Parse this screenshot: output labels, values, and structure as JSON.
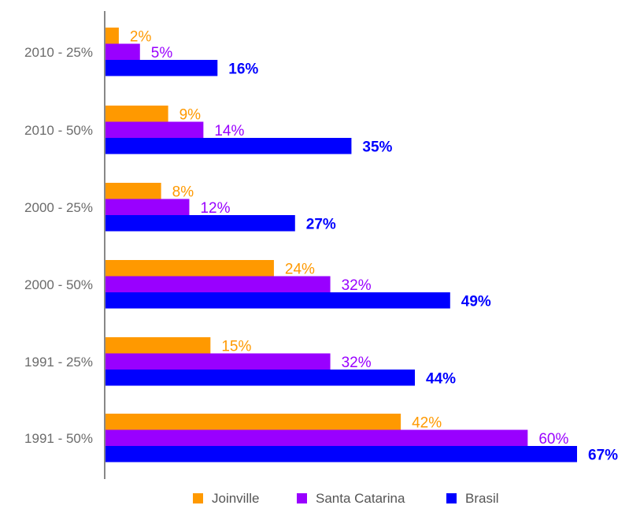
{
  "chart_data": {
    "type": "bar",
    "orientation": "horizontal",
    "categories": [
      "2010 - 25%",
      "2010 - 50%",
      "2000 - 25%",
      "2000 - 50%",
      "1991 - 25%",
      "1991 - 50%"
    ],
    "series": [
      {
        "name": "Joinville",
        "color": "#ff9900",
        "values": [
          2,
          9,
          8,
          24,
          15,
          42
        ],
        "labels": [
          "2%",
          "9%",
          "8%",
          "24%",
          "15%",
          "42%"
        ]
      },
      {
        "name": "Santa Catarina",
        "color": "#9900ff",
        "values": [
          5,
          14,
          12,
          32,
          32,
          60
        ],
        "labels": [
          "5%",
          "14%",
          "12%",
          "32%",
          "32%",
          "60%"
        ]
      },
      {
        "name": "Brasil",
        "color": "#0000ff",
        "values": [
          16,
          35,
          27,
          49,
          44,
          67
        ],
        "labels": [
          "16%",
          "35%",
          "27%",
          "49%",
          "44%",
          "67%"
        ]
      }
    ],
    "xlim": [
      0,
      67
    ],
    "grid": false,
    "legend": "bottom-center"
  }
}
